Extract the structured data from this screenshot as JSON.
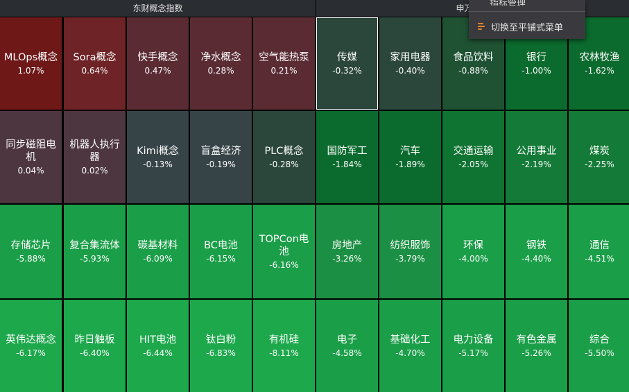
{
  "header": {
    "left_title": "东财概念指数",
    "right_title": "申万一级"
  },
  "menu": {
    "partial_item": "指标管理",
    "switch_label": "切换至平铺式菜单"
  },
  "colors": {
    "deep_red": "#6e1818",
    "red": "#6e2326",
    "maroon": "#5a2b33",
    "mauve": "#4d3640",
    "slate": "#364347",
    "dark_teal": "#2b463b",
    "green_dark": "#0b6a2d",
    "green": "#1a9e48",
    "green_bright": "#1da84c"
  },
  "rows": [
    [
      {
        "name": "MLOps概念",
        "pct": "1.07%"
      },
      {
        "name": "Sora概念",
        "pct": "0.64%"
      },
      {
        "name": "快手概念",
        "pct": "0.47%"
      },
      {
        "name": "净水概念",
        "pct": "0.28%"
      },
      {
        "name": "空气能热泵",
        "pct": "0.21%"
      },
      {
        "name": "传媒",
        "pct": "-0.32%"
      },
      {
        "name": "家用电器",
        "pct": "-0.40%"
      },
      {
        "name": "食品饮料",
        "pct": "-0.88%"
      },
      {
        "name": "银行",
        "pct": "-1.00%"
      },
      {
        "name": "农林牧渔",
        "pct": "-1.62%"
      }
    ],
    [
      {
        "name": "同步磁阻电机",
        "pct": "0.04%"
      },
      {
        "name": "机器人执行器",
        "pct": "0.02%"
      },
      {
        "name": "Kimi概念",
        "pct": "-0.13%"
      },
      {
        "name": "盲盒经济",
        "pct": "-0.19%"
      },
      {
        "name": "PLC概念",
        "pct": "-0.28%"
      },
      {
        "name": "国防军工",
        "pct": "-1.84%"
      },
      {
        "name": "汽车",
        "pct": "-1.89%"
      },
      {
        "name": "交通运输",
        "pct": "-2.05%"
      },
      {
        "name": "公用事业",
        "pct": "-2.19%"
      },
      {
        "name": "煤炭",
        "pct": "-2.25%"
      }
    ],
    [
      {
        "name": "存储芯片",
        "pct": "-5.88%"
      },
      {
        "name": "复合集流体",
        "pct": "-5.93%"
      },
      {
        "name": "碳基材料",
        "pct": "-6.09%"
      },
      {
        "name": "BC电池",
        "pct": "-6.15%"
      },
      {
        "name": "TOPCon电池",
        "pct": "-6.16%"
      },
      {
        "name": "房地产",
        "pct": "-3.26%"
      },
      {
        "name": "纺织服饰",
        "pct": "-3.79%"
      },
      {
        "name": "环保",
        "pct": "-4.00%"
      },
      {
        "name": "钢铁",
        "pct": "-4.40%"
      },
      {
        "name": "通信",
        "pct": "-4.51%"
      }
    ],
    [
      {
        "name": "英伟达概念",
        "pct": "-6.17%"
      },
      {
        "name": "昨日触板",
        "pct": "-6.40%"
      },
      {
        "name": "HIT电池",
        "pct": "-6.44%"
      },
      {
        "name": "钛白粉",
        "pct": "-6.83%"
      },
      {
        "name": "有机硅",
        "pct": "-8.11%"
      },
      {
        "name": "电子",
        "pct": "-4.58%"
      },
      {
        "name": "基础化工",
        "pct": "-4.70%"
      },
      {
        "name": "电力设备",
        "pct": "-5.17%"
      },
      {
        "name": "有色金属",
        "pct": "-5.26%"
      },
      {
        "name": "综合",
        "pct": "-5.50%"
      }
    ]
  ]
}
